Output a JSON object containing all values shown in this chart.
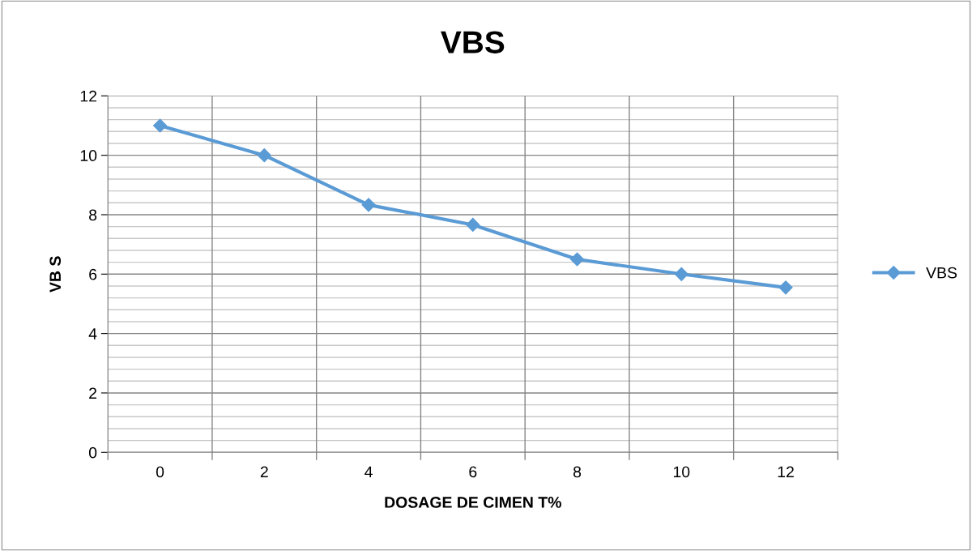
{
  "chart_data": {
    "type": "line",
    "title": "VBS",
    "xlabel": "DOSAGE DE CIMEN T%",
    "ylabel": "VB S",
    "categories": [
      "0",
      "2",
      "4",
      "6",
      "8",
      "10",
      "12"
    ],
    "series": [
      {
        "name": "VBS",
        "color": "#5b9bd5",
        "values": [
          11,
          10,
          8.33,
          7.66,
          6.5,
          6,
          5.55
        ]
      }
    ],
    "ylim": [
      0,
      12
    ],
    "yticks": [
      0,
      2,
      4,
      6,
      8,
      10,
      12
    ],
    "grid": true,
    "legend": "right",
    "marker": "diamond",
    "line_style": "solid"
  }
}
